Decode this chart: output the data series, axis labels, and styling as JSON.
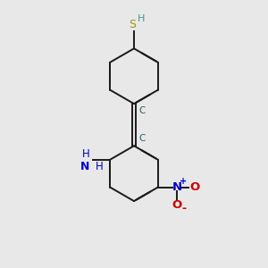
{
  "background_color": "#e8e8e8",
  "bond_color": "#1a1a1a",
  "sh_s_color": "#999900",
  "sh_h_color": "#4a9090",
  "nh2_color": "#0000cc",
  "no2_n_color": "#0000cc",
  "no2_o_color": "#cc0000",
  "alkyne_c_color": "#2a6060",
  "figsize": [
    3.0,
    3.0
  ],
  "dpi": 100,
  "xlim": [
    0,
    10
  ],
  "ylim": [
    0,
    10
  ]
}
